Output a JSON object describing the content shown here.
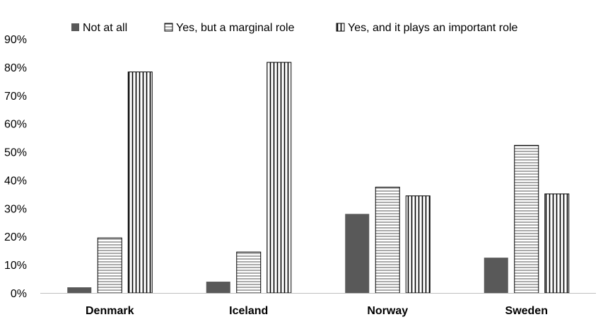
{
  "chart_data": {
    "type": "bar",
    "title": "",
    "xlabel": "",
    "ylabel": "",
    "categories": [
      "Denmark",
      "Iceland",
      "Norway",
      "Sweden"
    ],
    "ylim": [
      0,
      90
    ],
    "yticks": [
      "0%",
      "10%",
      "20%",
      "30%",
      "40%",
      "50%",
      "60%",
      "70%",
      "80%",
      "90%"
    ],
    "grid": false,
    "legend_position": "top",
    "series": [
      {
        "name": "Not at all",
        "values": [
          2,
          4,
          28,
          12.5
        ],
        "style": "solid",
        "color": "#595959"
      },
      {
        "name": "Yes, but a marginal role",
        "values": [
          19.5,
          14.5,
          37.5,
          52.3
        ],
        "style": "horizontal-lines",
        "color": "#000000"
      },
      {
        "name": "Yes, and it plays an important role",
        "values": [
          78.3,
          81.7,
          34.4,
          35.1
        ],
        "style": "vertical-lines",
        "color": "#000000"
      }
    ]
  }
}
